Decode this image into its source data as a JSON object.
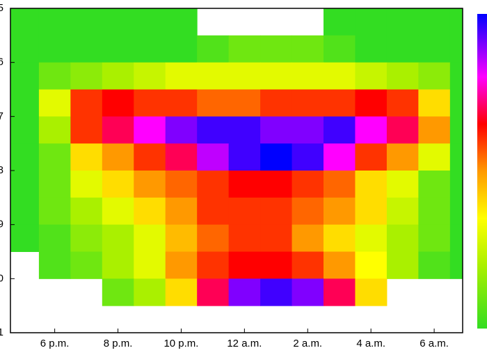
{
  "chart_data": {
    "type": "heatmap",
    "x": [
      17,
      18,
      19,
      20,
      21,
      22,
      23,
      24,
      25,
      26,
      27,
      28,
      29,
      30,
      31
    ],
    "y": [
      5.25,
      5.75,
      6.25,
      6.75,
      7.25,
      7.75,
      8.25,
      8.75,
      9.25,
      9.75,
      10.25,
      10.75
    ],
    "z": [
      [
        0,
        0,
        0,
        0,
        0,
        0,
        null,
        null,
        null,
        null,
        0,
        0,
        0,
        0,
        0
      ],
      [
        0,
        0,
        0,
        0,
        0,
        0,
        0.5,
        1,
        1,
        1,
        0.5,
        0,
        0,
        0,
        0
      ],
      [
        0,
        1,
        1.5,
        2,
        2.5,
        3,
        3,
        3,
        3,
        3,
        3,
        2.5,
        2,
        1.5,
        0
      ],
      [
        0,
        3,
        6,
        6.5,
        6,
        6,
        5.5,
        5.5,
        6,
        6,
        6,
        6.5,
        6,
        4,
        0
      ],
      [
        0,
        2,
        6,
        7,
        8,
        9,
        9.5,
        9.5,
        9,
        9,
        9.5,
        8,
        7,
        5,
        0
      ],
      [
        0,
        1,
        4,
        5,
        6,
        7,
        8.5,
        9.5,
        10,
        9.5,
        8,
        6,
        5,
        3,
        0
      ],
      [
        0,
        1,
        3,
        4,
        5,
        5.5,
        6,
        6.5,
        6.5,
        6,
        5.5,
        4,
        3,
        1,
        0
      ],
      [
        0,
        1,
        2,
        3,
        4,
        5,
        6,
        6,
        6,
        5.5,
        5,
        4,
        2.5,
        1,
        0
      ],
      [
        0,
        0.5,
        1.5,
        2,
        3,
        4.5,
        5.5,
        6,
        6,
        5,
        4,
        3,
        2,
        1,
        0
      ],
      [
        null,
        0.5,
        1,
        2,
        3,
        5,
        6,
        6.5,
        6.5,
        6,
        5,
        3.5,
        2,
        0.5,
        0
      ],
      [
        null,
        null,
        null,
        1,
        2,
        4,
        7,
        9,
        9.5,
        9,
        7,
        4,
        null,
        null,
        null
      ],
      [
        null,
        null,
        null,
        null,
        null,
        null,
        null,
        null,
        null,
        null,
        null,
        null,
        null,
        null,
        null
      ]
    ],
    "zlim": [
      0,
      10
    ],
    "colorscale": [
      [
        0,
        "#33dd22"
      ],
      [
        2,
        "#aaf000"
      ],
      [
        3.5,
        "#ffff00"
      ],
      [
        5,
        "#ff9900"
      ],
      [
        6.5,
        "#ff0000"
      ],
      [
        8,
        "#ff00ff"
      ],
      [
        10,
        "#0000ff"
      ]
    ],
    "xlim": [
      16.6,
      30.9
    ],
    "xticks": [
      {
        "value": 18,
        "label": "6 p.m."
      },
      {
        "value": 20,
        "label": "8 p.m."
      },
      {
        "value": 22,
        "label": "10 p.m."
      },
      {
        "value": 24,
        "label": "12 a.m."
      },
      {
        "value": 26,
        "label": "2 a.m."
      },
      {
        "value": 28,
        "label": "4 a.m."
      },
      {
        "value": 30,
        "label": "6 a.m."
      }
    ],
    "ylim": [
      5,
      11
    ],
    "yticks": [
      5,
      6,
      7,
      8,
      9,
      {
        "value": 10,
        "label": "0"
      },
      {
        "value": 11,
        "label": "1"
      }
    ],
    "y_reversed": true
  }
}
